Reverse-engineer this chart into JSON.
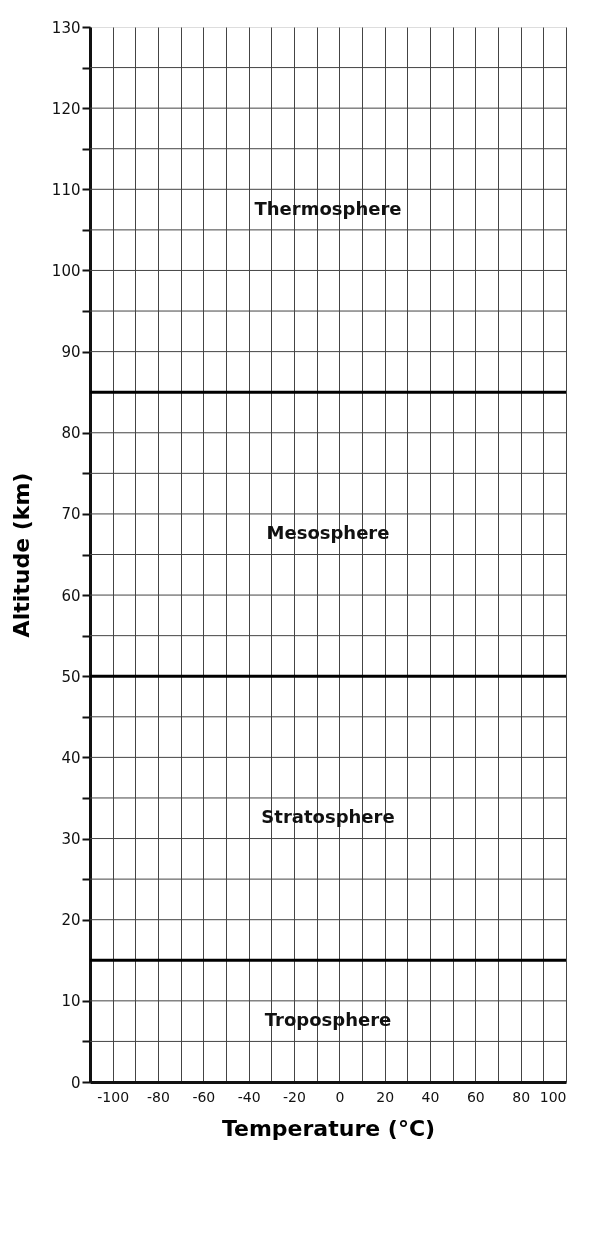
{
  "chart_data": {
    "type": "line",
    "xlabel": "Temperature (°C)",
    "ylabel": "Altitude (km)",
    "xlim": [
      -110,
      100
    ],
    "ylim": [
      0,
      130
    ],
    "xticks": [
      {
        "value": -110,
        "label": null
      },
      -100,
      {
        "value": -90,
        "label": null
      },
      -80,
      {
        "value": -70,
        "label": null
      },
      -60,
      {
        "value": -50,
        "label": null
      },
      -40,
      {
        "value": -30,
        "label": null
      },
      -20,
      {
        "value": -10,
        "label": null
      },
      0,
      {
        "value": 10,
        "label": null
      },
      20,
      {
        "value": 30,
        "label": null
      },
      40,
      {
        "value": 50,
        "label": null
      },
      60,
      {
        "value": 70,
        "label": null
      },
      80,
      {
        "value": 90,
        "label": null
      },
      100
    ],
    "yticks": [
      0,
      {
        "value": 5,
        "label": null
      },
      10,
      20,
      {
        "value": 25,
        "label": null
      },
      30,
      {
        "value": 35,
        "label": null
      },
      40,
      {
        "value": 45,
        "label": null
      },
      50,
      {
        "value": 55,
        "label": null
      },
      60,
      {
        "value": 65,
        "label": null
      },
      70,
      {
        "value": 75,
        "label": null
      },
      80,
      90,
      {
        "value": 95,
        "label": null
      },
      100,
      {
        "value": 105,
        "label": null
      },
      110,
      {
        "value": 115,
        "label": null
      },
      120,
      {
        "value": 125,
        "label": null
      },
      130
    ],
    "grid": true,
    "ref_lines": [
      {
        "axis": "y",
        "value": 85,
        "label": null,
        "color": "#000000"
      },
      {
        "axis": "y",
        "value": 50,
        "label": null,
        "color": "#000000"
      },
      {
        "axis": "y",
        "value": 15,
        "label": null,
        "color": "#000000"
      }
    ],
    "annotations": [
      "Thermosphere",
      "Mesosphere",
      "Stratosphere",
      "Troposphere"
    ]
  }
}
